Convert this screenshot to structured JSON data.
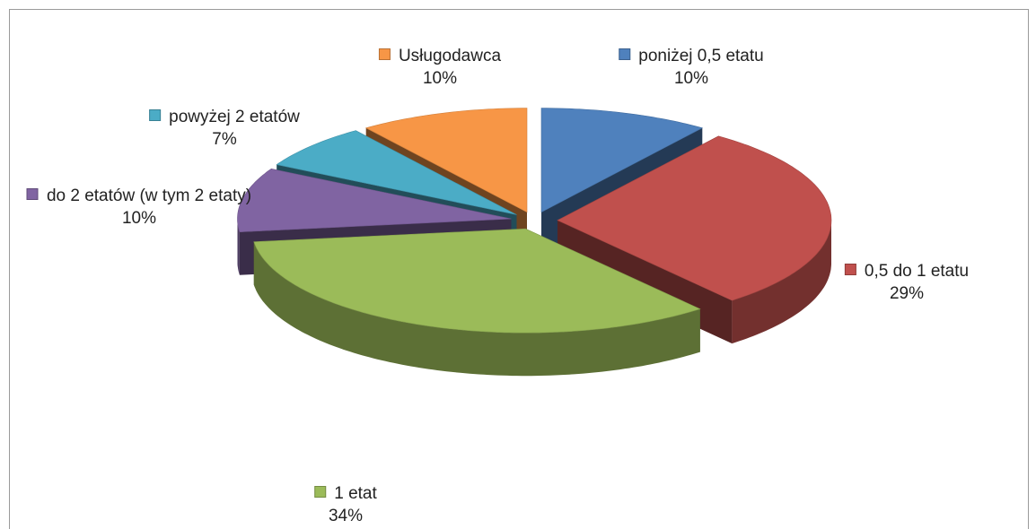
{
  "chart_data": {
    "type": "pie",
    "categories": [
      "poniżej 0,5 etatu",
      "0,5 do 1 etatu",
      "1 etat",
      "do 2 etatów (w tym 2 etaty)",
      "powyżej 2 etatów",
      "Usługodawca"
    ],
    "values": [
      10,
      29,
      34,
      10,
      7,
      10
    ],
    "value_labels": [
      "10%",
      "29%",
      "34%",
      "10%",
      "7%",
      "10%"
    ],
    "colors": [
      "#4f81bd",
      "#c0504d",
      "#9bbb59",
      "#8064a2",
      "#4bacc6",
      "#f79646"
    ],
    "exploded": true,
    "three_d": true
  }
}
